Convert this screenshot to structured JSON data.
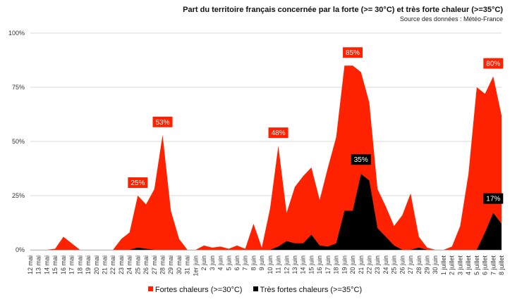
{
  "chart_data": {
    "type": "area",
    "title": "Part du territoire français concernée par la forte (>= 30°C) et très forte chaleur (>=35°C)",
    "subtitle": "Source des données : Météo-France",
    "categories": [
      "12 mai",
      "13 mai",
      "14 mai",
      "15 mai",
      "16 mai",
      "17 mai",
      "18 mai",
      "19 mai",
      "20 mai",
      "21 mai",
      "22 mai",
      "23 mai",
      "24 mai",
      "25 mai",
      "26 mai",
      "27 mai",
      "28 mai",
      "29 mai",
      "30 mai",
      "31 mai",
      "1er juin",
      "2 juin",
      "3 juin",
      "4 juin",
      "5 juin",
      "6 juin",
      "7 juin",
      "8 juin",
      "9 juin",
      "10 juin",
      "11 juin",
      "12 juin",
      "13 juin",
      "14 juin",
      "15 juin",
      "16 juin",
      "17 juin",
      "18 juin",
      "19 juin",
      "20 juin",
      "21 juin",
      "22 juin",
      "23 juin",
      "24 juin",
      "25 juin",
      "26 juin",
      "27 juin",
      "28 juin",
      "29 juin",
      "30 juin",
      "1 juillet",
      "2 juillet",
      "3 juillet",
      "4 juillet",
      "5 juillet",
      "6 juillet",
      "7 juillet",
      "8 juillet"
    ],
    "y_ticks": [
      "0%",
      "25%",
      "50%",
      "75%",
      "100%"
    ],
    "ylim": [
      0,
      100
    ],
    "series": [
      {
        "name": "Fortes chaleurs (>=30°C)",
        "color": "#ff2200",
        "values": [
          0,
          0,
          0,
          0.5,
          6,
          3,
          0,
          0,
          0,
          0,
          0,
          5,
          8,
          25,
          21,
          28,
          53,
          18,
          5,
          0,
          0,
          2,
          1,
          1.5,
          0.5,
          2,
          0.5,
          12,
          1,
          19,
          48,
          17,
          29,
          34,
          38,
          23,
          38,
          52,
          85,
          85,
          82,
          68,
          28,
          20,
          11,
          16,
          26,
          6,
          1,
          0,
          0,
          1.5,
          11,
          35,
          75,
          72,
          80,
          62
        ]
      },
      {
        "name": "Très fortes chaleurs (>=35°C)",
        "color": "#000000",
        "values": [
          0,
          0,
          0,
          0,
          0,
          0,
          0,
          0,
          0,
          0,
          0,
          0,
          0,
          1,
          0.5,
          0,
          0,
          0,
          0,
          0,
          0,
          0,
          0,
          0,
          0,
          0,
          0,
          0,
          0,
          0,
          1.5,
          4,
          3,
          3,
          7,
          2,
          1.5,
          3,
          18,
          18,
          35,
          32,
          10,
          6,
          2,
          0,
          0,
          1,
          0,
          0,
          0,
          0,
          0,
          0,
          0,
          8,
          17,
          12
        ]
      }
    ],
    "annotations": [
      {
        "series": 0,
        "index": 13,
        "text": "25%"
      },
      {
        "series": 0,
        "index": 16,
        "text": "53%"
      },
      {
        "series": 0,
        "index": 30,
        "text": "48%"
      },
      {
        "series": 0,
        "index": 39,
        "text": "85%"
      },
      {
        "series": 0,
        "index": 56,
        "text": "80%"
      },
      {
        "series": 1,
        "index": 40,
        "text": "35%"
      },
      {
        "series": 1,
        "index": 56,
        "text": "17%"
      }
    ],
    "grid": true,
    "legend_position": "bottom"
  }
}
